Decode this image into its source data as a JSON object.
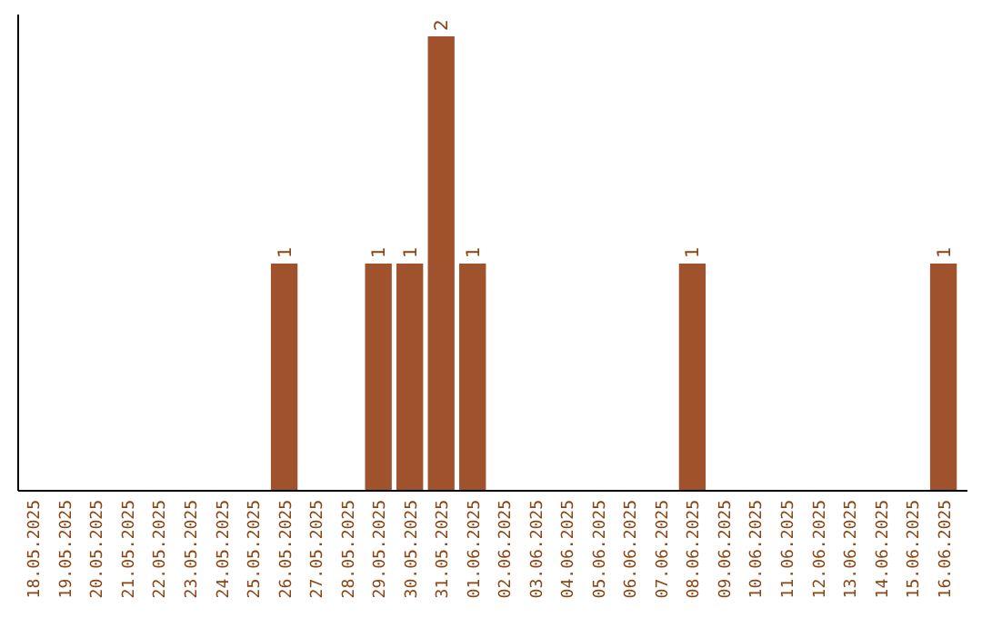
{
  "chart_data": {
    "type": "bar",
    "categories": [
      "18.05.2025",
      "19.05.2025",
      "20.05.2025",
      "21.05.2025",
      "22.05.2025",
      "23.05.2025",
      "24.05.2025",
      "25.05.2025",
      "26.05.2025",
      "27.05.2025",
      "28.05.2025",
      "29.05.2025",
      "30.05.2025",
      "31.05.2025",
      "01.06.2025",
      "02.06.2025",
      "03.06.2025",
      "04.06.2025",
      "05.06.2025",
      "06.06.2025",
      "07.06.2025",
      "08.06.2025",
      "09.06.2025",
      "10.06.2025",
      "11.06.2025",
      "12.06.2025",
      "13.06.2025",
      "14.06.2025",
      "15.06.2025",
      "16.06.2025"
    ],
    "values": [
      0,
      0,
      0,
      0,
      0,
      0,
      0,
      0,
      1,
      0,
      0,
      1,
      1,
      2,
      1,
      0,
      0,
      0,
      0,
      0,
      0,
      1,
      0,
      0,
      0,
      0,
      0,
      0,
      0,
      1
    ],
    "value_labels": [
      null,
      null,
      null,
      null,
      null,
      null,
      null,
      null,
      "1",
      null,
      null,
      "1",
      "1",
      "2",
      "1",
      null,
      null,
      null,
      null,
      null,
      null,
      "1",
      null,
      null,
      null,
      null,
      null,
      null,
      null,
      "1"
    ],
    "color": "#a0522d",
    "grid": false
  }
}
